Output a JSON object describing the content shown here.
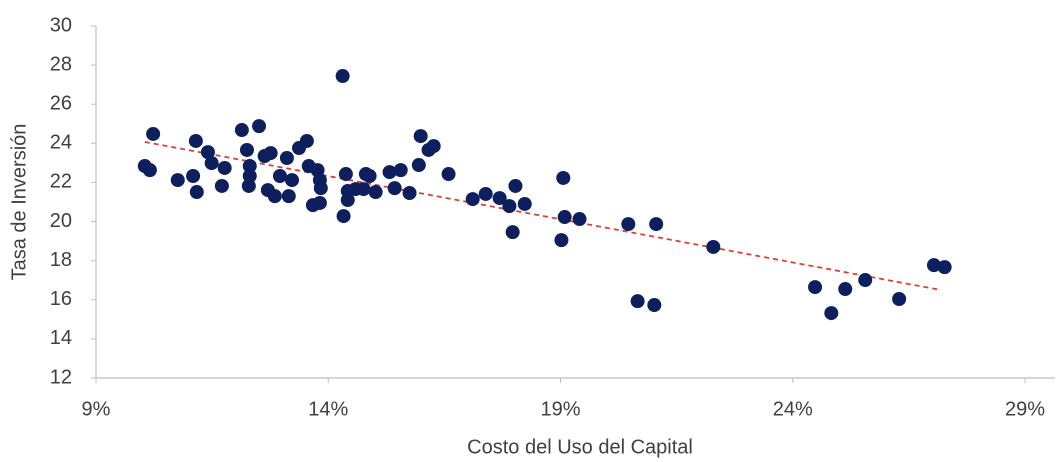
{
  "chart_data": {
    "type": "scatter",
    "xlabel": "Costo del Uso del Capital",
    "ylabel": "Tasa de Inversión",
    "xlim": [
      9,
      29
    ],
    "xticks": [
      {
        "value": 9,
        "label": "9%"
      },
      {
        "value": 14,
        "label": "14%"
      },
      {
        "value": 19,
        "label": "19%"
      },
      {
        "value": 24,
        "label": "24%"
      },
      {
        "value": 29,
        "label": "29%"
      }
    ],
    "ylim": [
      12,
      30
    ],
    "yticks": [
      12,
      14,
      16,
      18,
      20,
      22,
      24,
      26,
      28,
      30
    ],
    "grid": false,
    "series": [
      {
        "color": "#0d1f5c",
        "x": [
          10.05,
          10.16,
          10.23,
          10.76,
          11.09,
          11.15,
          11.17,
          11.41,
          11.49,
          11.71,
          11.77,
          12.14,
          12.25,
          12.29,
          12.31,
          12.31,
          12.51,
          12.63,
          12.7,
          12.76,
          12.85,
          12.96,
          13.11,
          13.15,
          13.22,
          13.37,
          13.54,
          13.58,
          13.67,
          13.77,
          13.82,
          13.82,
          13.84,
          14.31,
          14.33,
          14.38,
          14.42,
          14.42,
          14.59,
          14.76,
          14.81,
          14.89,
          15.02,
          15.32,
          15.43,
          15.56,
          15.75,
          15.95,
          15.99,
          16.16,
          16.27,
          16.59,
          17.11,
          17.39,
          17.69,
          17.9,
          17.97,
          18.03,
          18.23,
          19.02,
          19.06,
          19.09,
          19.41,
          20.46,
          20.66,
          21.02,
          21.06,
          22.29,
          24.48,
          24.83,
          25.13,
          25.56,
          26.29,
          27.04,
          27.27
        ],
        "values": [
          22.84,
          22.63,
          24.48,
          22.12,
          22.33,
          24.12,
          21.51,
          23.55,
          22.99,
          21.82,
          22.74,
          24.68,
          23.66,
          21.82,
          22.33,
          22.84,
          24.88,
          23.35,
          21.61,
          23.5,
          21.3,
          22.33,
          23.25,
          21.3,
          22.12,
          23.76,
          24.12,
          22.84,
          20.84,
          22.63,
          20.95,
          22.12,
          21.71,
          27.44,
          20.28,
          22.43,
          21.1,
          21.56,
          21.66,
          21.66,
          22.43,
          22.33,
          21.51,
          22.53,
          21.71,
          22.63,
          21.46,
          22.89,
          24.37,
          23.66,
          23.86,
          22.43,
          21.15,
          21.41,
          21.2,
          20.79,
          19.46,
          21.82,
          20.9,
          19.05,
          22.23,
          20.23,
          20.13,
          19.87,
          15.93,
          15.73,
          19.87,
          18.7,
          16.65,
          15.32,
          16.55,
          17.01,
          16.04,
          17.77,
          17.67
        ]
      }
    ],
    "trendline": {
      "color": "#d9403a",
      "x": [
        10.05,
        27.19
      ],
      "values": [
        24.07,
        16.5
      ]
    }
  }
}
